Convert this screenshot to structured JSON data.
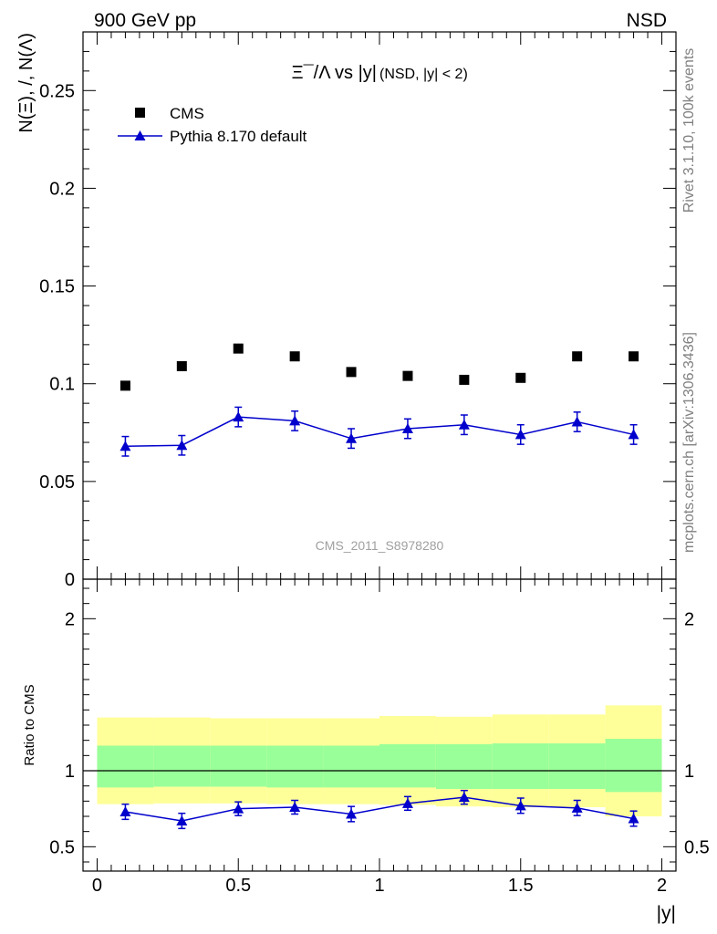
{
  "header": {
    "left": "900 GeV pp",
    "right": "NSD"
  },
  "side_labels": {
    "rivet": "Rivet 3.1.10,  100k events",
    "mcplots": "mcplots.cern.ch [arXiv:1306.3436]"
  },
  "watermark": "CMS_2011_S8978280",
  "colors": {
    "mc": "#0000cc",
    "data": "#000000",
    "band_inner": "#99ff99",
    "band_outer": "#ffff99"
  },
  "chart_data": [
    {
      "type": "scatter",
      "panel": "main",
      "title": "Ξ¯/Λ vs |y|",
      "title_suffix": "(NSD, |y| < 2)",
      "ylabel": "N(Ξ), /, N(Λ)",
      "xlim": [
        -0.05,
        2.05
      ],
      "ylim": [
        0,
        0.28
      ],
      "yticks": [
        0,
        0.05,
        0.1,
        0.15,
        0.2,
        0.25
      ],
      "ytick_labels": [
        "0",
        "0.05",
        "0.1",
        "0.15",
        "0.2",
        "0.25"
      ],
      "legend": {
        "position": "top-left",
        "entries": [
          "CMS",
          "Pythia 8.170 default"
        ]
      },
      "series": [
        {
          "name": "CMS",
          "marker": "square",
          "x": [
            0.1,
            0.3,
            0.5,
            0.7,
            0.9,
            1.1,
            1.3,
            1.5,
            1.7,
            1.9
          ],
          "y": [
            0.099,
            0.109,
            0.118,
            0.114,
            0.106,
            0.104,
            0.102,
            0.103,
            0.114,
            0.114
          ]
        },
        {
          "name": "Pythia 8.170 default",
          "marker": "triangle",
          "line": true,
          "x": [
            0.1,
            0.3,
            0.5,
            0.7,
            0.9,
            1.1,
            1.3,
            1.5,
            1.7,
            1.9
          ],
          "y": [
            0.068,
            0.0685,
            0.083,
            0.081,
            0.072,
            0.077,
            0.079,
            0.074,
            0.0805,
            0.074
          ],
          "yerr": [
            0.005,
            0.005,
            0.005,
            0.005,
            0.005,
            0.005,
            0.005,
            0.005,
            0.005,
            0.005
          ]
        }
      ]
    },
    {
      "type": "scatter",
      "panel": "ratio",
      "ylabel": "Ratio to CMS",
      "xlabel": "|y|",
      "xlim": [
        -0.05,
        2.05
      ],
      "ylim": [
        0.34,
        2.26
      ],
      "xticks": [
        0,
        0.5,
        1,
        1.5,
        2
      ],
      "xtick_labels": [
        "0",
        "0.5",
        "1",
        "1.5",
        "2"
      ],
      "yticks": [
        0.5,
        1,
        2
      ],
      "ytick_labels": [
        "0.5",
        "1",
        "2"
      ],
      "reference_line": 1,
      "bands": {
        "edges": [
          0,
          0.2,
          0.4,
          0.6,
          0.8,
          1.0,
          1.2,
          1.4,
          1.6,
          1.8,
          2.0
        ],
        "outer_low": [
          0.78,
          0.785,
          0.785,
          0.78,
          0.78,
          0.775,
          0.765,
          0.76,
          0.76,
          0.7
        ],
        "outer_high": [
          1.35,
          1.35,
          1.345,
          1.345,
          1.345,
          1.36,
          1.355,
          1.37,
          1.37,
          1.43
        ],
        "inner_low": [
          0.89,
          0.895,
          0.895,
          0.89,
          0.89,
          0.89,
          0.88,
          0.88,
          0.88,
          0.86
        ],
        "inner_high": [
          1.165,
          1.165,
          1.165,
          1.165,
          1.165,
          1.175,
          1.175,
          1.18,
          1.18,
          1.21
        ]
      },
      "series": [
        {
          "name": "Pythia 8.170 default",
          "marker": "triangle",
          "line": true,
          "x": [
            0.1,
            0.3,
            0.5,
            0.7,
            0.9,
            1.1,
            1.3,
            1.5,
            1.7,
            1.9
          ],
          "y": [
            0.73,
            0.67,
            0.75,
            0.76,
            0.715,
            0.785,
            0.825,
            0.77,
            0.755,
            0.685
          ],
          "yerr": [
            0.05,
            0.05,
            0.045,
            0.045,
            0.05,
            0.045,
            0.045,
            0.05,
            0.05,
            0.05
          ]
        }
      ]
    }
  ]
}
